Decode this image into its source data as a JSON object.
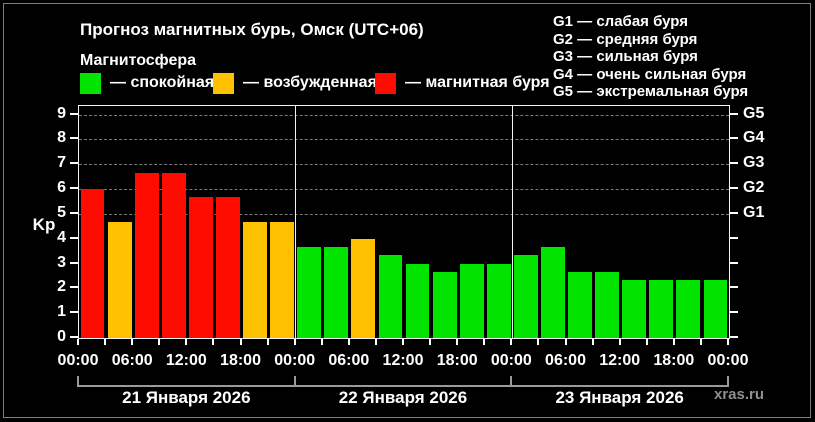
{
  "header": {
    "title": "Прогноз магнитных бурь, Омск (UTC+06)",
    "subtitle": "Магнитосфера"
  },
  "legend": [
    {
      "name": "quiet",
      "label": "— спокойная",
      "color": "#00E400"
    },
    {
      "name": "excited",
      "label": "— возбужденная",
      "color": "#FFC000"
    },
    {
      "name": "storm",
      "label": "— магнитная буря",
      "color": "#FF0C00"
    }
  ],
  "storm_scale": [
    "G1 — слабая буря",
    "G2 — средняя буря",
    "G3 — сильная буря",
    "G4 — очень сильная буря",
    "G5 — экстремальная буря"
  ],
  "watermark": "xras.ru",
  "chart_data": {
    "type": "bar",
    "title": "Прогноз магнитных бурь, Омск (UTC+06)",
    "ylabel": "Kp",
    "ylim": [
      0,
      9.35
    ],
    "yticks": [
      0,
      1,
      2,
      3,
      4,
      5,
      6,
      7,
      8,
      9
    ],
    "gridlines_at": [
      5,
      6,
      7,
      8,
      9
    ],
    "grid": true,
    "legend_position": "top-left",
    "bar_interval_hours": 3,
    "right_axis": [
      {
        "kp": 5,
        "label": "G1"
      },
      {
        "kp": 6,
        "label": "G2"
      },
      {
        "kp": 7,
        "label": "G3"
      },
      {
        "kp": 8,
        "label": "G4"
      },
      {
        "kp": 9,
        "label": "G5"
      }
    ],
    "x_tick_labels": [
      "00:00",
      "06:00",
      "12:00",
      "18:00",
      "00:00",
      "06:00",
      "12:00",
      "18:00",
      "00:00",
      "06:00",
      "12:00",
      "18:00",
      "00:00"
    ],
    "palette": {
      "quiet": "#00E400",
      "excited": "#FFC000",
      "storm": "#FF0C00"
    },
    "days": [
      {
        "date": "21 Января 2026",
        "values": [
          6,
          4.67,
          6.67,
          6.67,
          5.67,
          5.67,
          4.67,
          4.67
        ],
        "levels": [
          "storm",
          "excited",
          "storm",
          "storm",
          "storm",
          "storm",
          "excited",
          "excited"
        ]
      },
      {
        "date": "22 Января 2026",
        "values": [
          3.67,
          3.67,
          4,
          3.33,
          3,
          2.67,
          3,
          3
        ],
        "levels": [
          "quiet",
          "quiet",
          "excited",
          "quiet",
          "quiet",
          "quiet",
          "quiet",
          "quiet"
        ]
      },
      {
        "date": "23 Января 2026",
        "values": [
          3.33,
          3.67,
          2.67,
          2.67,
          2.33,
          2.33,
          2.33,
          2.33
        ],
        "levels": [
          "quiet",
          "quiet",
          "quiet",
          "quiet",
          "quiet",
          "quiet",
          "quiet",
          "quiet"
        ]
      }
    ]
  }
}
